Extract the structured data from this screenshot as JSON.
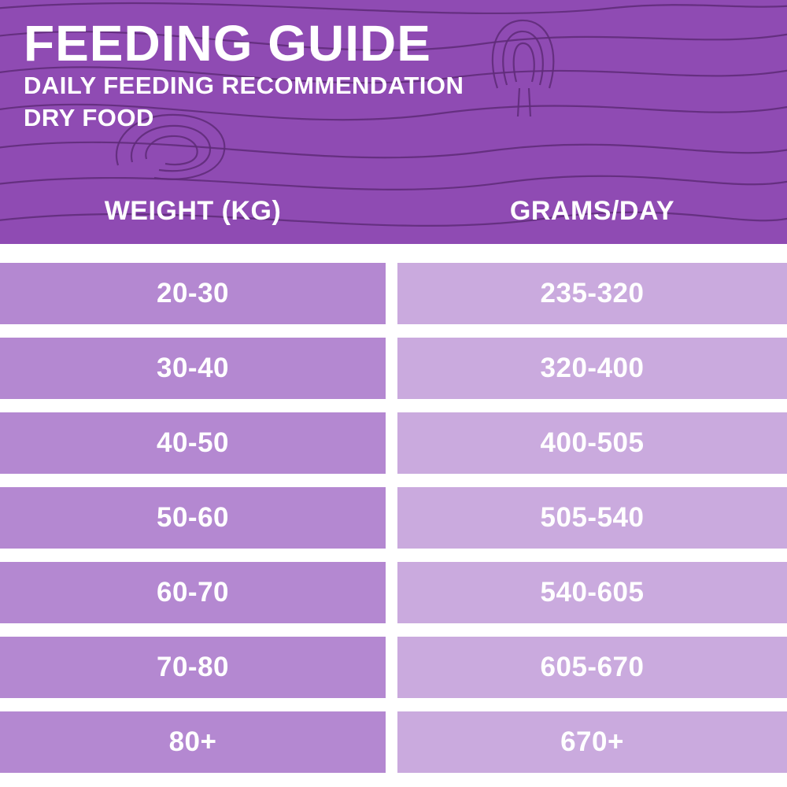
{
  "colors": {
    "header_bg": "#8f4bb3",
    "line": "#5e2b78",
    "left_cell": "#b488d1",
    "right_cell": "#caaade",
    "text": "#ffffff",
    "page_bg": "#ffffff"
  },
  "header": {
    "title": "FEEDING GUIDE",
    "subtitle1": "DAILY FEEDING RECOMMENDATION",
    "subtitle2": "DRY FOOD"
  },
  "table": {
    "columns": [
      "WEIGHT (KG)",
      "GRAMS/DAY"
    ],
    "rows": [
      {
        "weight": "20-30",
        "grams": "235-320"
      },
      {
        "weight": "30-40",
        "grams": "320-400"
      },
      {
        "weight": "40-50",
        "grams": "400-505"
      },
      {
        "weight": "50-60",
        "grams": "505-540"
      },
      {
        "weight": "60-70",
        "grams": "540-605"
      },
      {
        "weight": "70-80",
        "grams": "605-670"
      },
      {
        "weight": "80+",
        "grams": "670+"
      }
    ]
  },
  "chart_data": {
    "type": "table",
    "title": "FEEDING GUIDE",
    "subtitle": "DAILY FEEDING RECOMMENDATION — DRY FOOD",
    "columns": [
      "WEIGHT (KG)",
      "GRAMS/DAY"
    ],
    "rows": [
      [
        "20-30",
        "235-320"
      ],
      [
        "30-40",
        "320-400"
      ],
      [
        "40-50",
        "400-505"
      ],
      [
        "50-60",
        "505-540"
      ],
      [
        "60-70",
        "540-605"
      ],
      [
        "70-80",
        "605-670"
      ],
      [
        "80+",
        "670+"
      ]
    ]
  }
}
